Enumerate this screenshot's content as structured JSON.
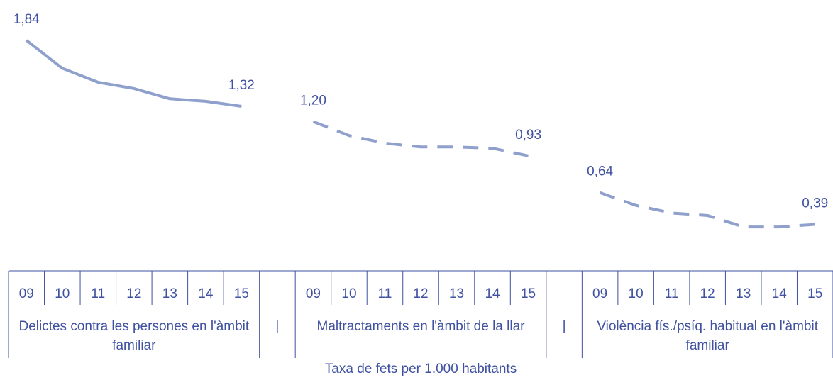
{
  "chart_data": {
    "type": "line",
    "categories": [
      "09",
      "10",
      "11",
      "12",
      "13",
      "14",
      "15",
      null,
      "09",
      "10",
      "11",
      "12",
      "13",
      "14",
      "15",
      null,
      "09",
      "10",
      "11",
      "12",
      "13",
      "14",
      "15"
    ],
    "groups": [
      "Delictes contra les persones en l'àmbit familiar",
      "|",
      "Maltractaments en l'àmbit de la llar",
      "|",
      "Violència fís./psíq. habitual en l'àmbit familiar"
    ],
    "xlabel": "Taxa de fets per 1.000 habitants",
    "ylim": [
      0.2,
      2.0
    ],
    "series": [
      {
        "color": "#8fa0cc",
        "dash": "solid",
        "values": [
          1.84,
          1.62,
          1.51,
          1.46,
          1.38,
          1.36,
          1.32,
          null,
          null,
          null,
          null,
          null,
          null,
          null,
          null,
          null,
          null,
          null,
          null,
          null,
          null,
          null,
          null
        ],
        "value_labels": [
          "1,84",
          null,
          null,
          null,
          null,
          null,
          "1,32",
          null,
          null,
          null,
          null,
          null,
          null,
          null,
          null,
          null,
          null,
          null,
          null,
          null,
          null,
          null,
          null
        ]
      },
      {
        "color": "#8fa0cc",
        "dash": "dashed",
        "values": [
          null,
          null,
          null,
          null,
          null,
          null,
          null,
          null,
          1.2,
          1.09,
          1.03,
          1.0,
          1.0,
          0.99,
          0.93,
          null,
          null,
          null,
          null,
          null,
          null,
          null,
          null
        ],
        "value_labels": [
          null,
          null,
          null,
          null,
          null,
          null,
          null,
          null,
          "1,20",
          null,
          null,
          null,
          null,
          null,
          "0,93",
          null,
          null,
          null,
          null,
          null,
          null,
          null,
          null
        ]
      },
      {
        "color": "#8fa0cc",
        "dash": "dashed",
        "values": [
          null,
          null,
          null,
          null,
          null,
          null,
          null,
          null,
          null,
          null,
          null,
          null,
          null,
          null,
          null,
          null,
          0.64,
          0.54,
          0.48,
          0.46,
          0.37,
          0.37,
          0.39
        ],
        "value_labels": [
          null,
          null,
          null,
          null,
          null,
          null,
          null,
          null,
          null,
          null,
          null,
          null,
          null,
          null,
          null,
          null,
          "0,64",
          null,
          null,
          null,
          null,
          null,
          "0,39"
        ]
      }
    ]
  }
}
